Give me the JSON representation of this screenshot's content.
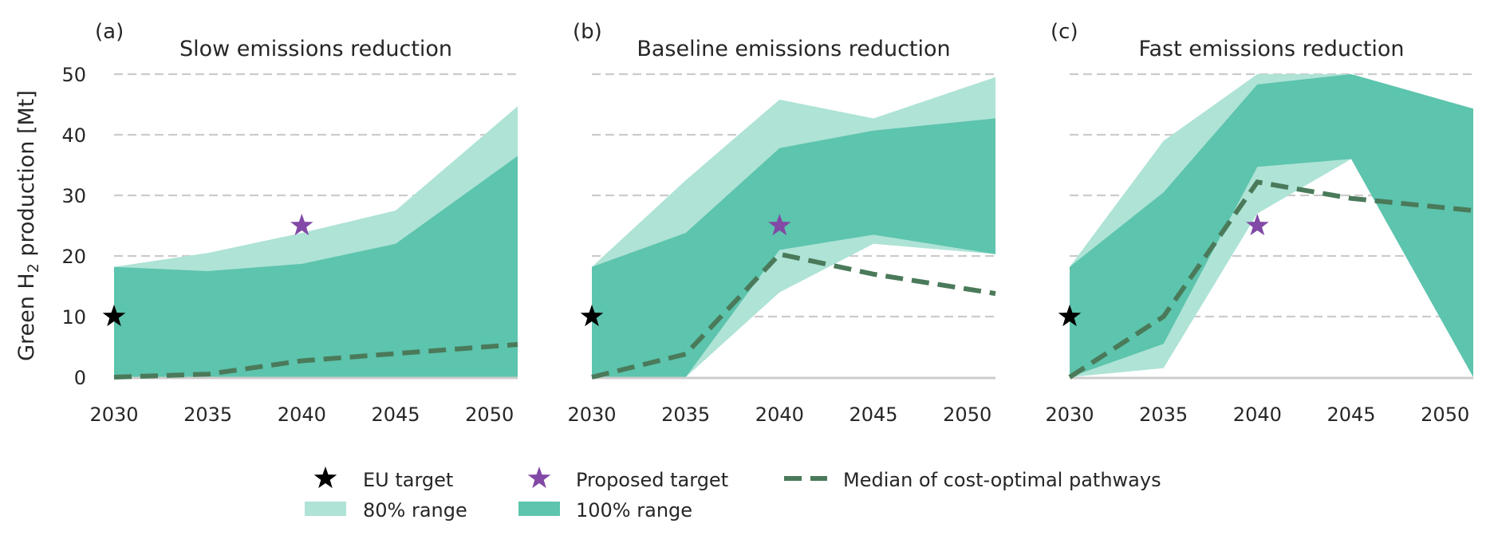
{
  "chart_data": {
    "type": "area",
    "ylabel": "Green H",
    "ylabel_sub": "2",
    "ylabel_rest": " production [Mt]",
    "xlim": [
      2030,
      2051.5
    ],
    "ylim": [
      0,
      50
    ],
    "yticks": [
      0,
      10,
      20,
      30,
      40,
      50
    ],
    "xticks": [
      2030,
      2035,
      2040,
      2045,
      2050
    ],
    "grid": "y",
    "legend": [
      {
        "label": "EU target",
        "kind": "black-star"
      },
      {
        "label": "Proposed target",
        "kind": "purple-star"
      },
      {
        "label": "Median of cost-optimal pathways",
        "kind": "dashed-line"
      },
      {
        "label": "80% range",
        "kind": "light-patch"
      },
      {
        "label": "100% range",
        "kind": "dark-patch"
      }
    ],
    "colors": {
      "range_80": "#aee3d6",
      "range_100": "#5dc4ad",
      "median": "#4a7a5a",
      "eu_target": "#000000",
      "proposed_target": "#8249a6",
      "grid": "#cccccc",
      "text": "#262626"
    },
    "panels": [
      {
        "letter": "(a)",
        "title": "Slow emissions reduction",
        "x": [
          2030,
          2035,
          2040,
          2045,
          2051.5
        ],
        "range100_upper": [
          18.2,
          17.5,
          18.7,
          22,
          36.5
        ],
        "range100_lower": [
          0,
          0,
          0,
          0,
          0
        ],
        "range80_upper": [
          18.2,
          20.5,
          23.8,
          27.5,
          44.7
        ],
        "range80_lower": [
          0,
          0,
          0,
          4,
          12.8
        ],
        "median": [
          0,
          0.5,
          2.7,
          3.9,
          5.4
        ],
        "eu_target": {
          "year": 2030,
          "value": 10
        },
        "proposed_target": {
          "year": 2040,
          "value": 25
        }
      },
      {
        "letter": "(b)",
        "title": "Baseline emissions reduction",
        "x": [
          2030,
          2035,
          2040,
          2045,
          2051.5
        ],
        "range100_upper": [
          18.2,
          23.8,
          37.8,
          40.7,
          42.7
        ],
        "range100_lower": [
          0,
          0,
          21,
          23.5,
          20.3
        ],
        "range80_upper": [
          18.2,
          32.5,
          45.8,
          42.7,
          49.5
        ],
        "range80_lower": [
          0,
          0,
          14,
          22,
          20.3
        ],
        "median": [
          0,
          3.8,
          20.3,
          17,
          13.8
        ],
        "eu_target": {
          "year": 2030,
          "value": 10
        },
        "proposed_target": {
          "year": 2040,
          "value": 25
        }
      },
      {
        "letter": "(c)",
        "title": "Fast emissions reduction",
        "x": [
          2030,
          2035,
          2040,
          2045,
          2051.5
        ],
        "range100_upper": [
          18.2,
          30.5,
          48.3,
          50,
          44.3
        ],
        "range100_lower": [
          0,
          5.5,
          34.7,
          36,
          0
        ],
        "range80_upper": [
          18.2,
          39,
          50,
          50,
          44.3
        ],
        "range80_lower": [
          0,
          1.5,
          27,
          36,
          0
        ],
        "median": [
          0,
          10,
          32.2,
          29.5,
          27.5
        ],
        "eu_target": {
          "year": 2030,
          "value": 10
        },
        "proposed_target": {
          "year": 2040,
          "value": 25
        }
      }
    ]
  }
}
